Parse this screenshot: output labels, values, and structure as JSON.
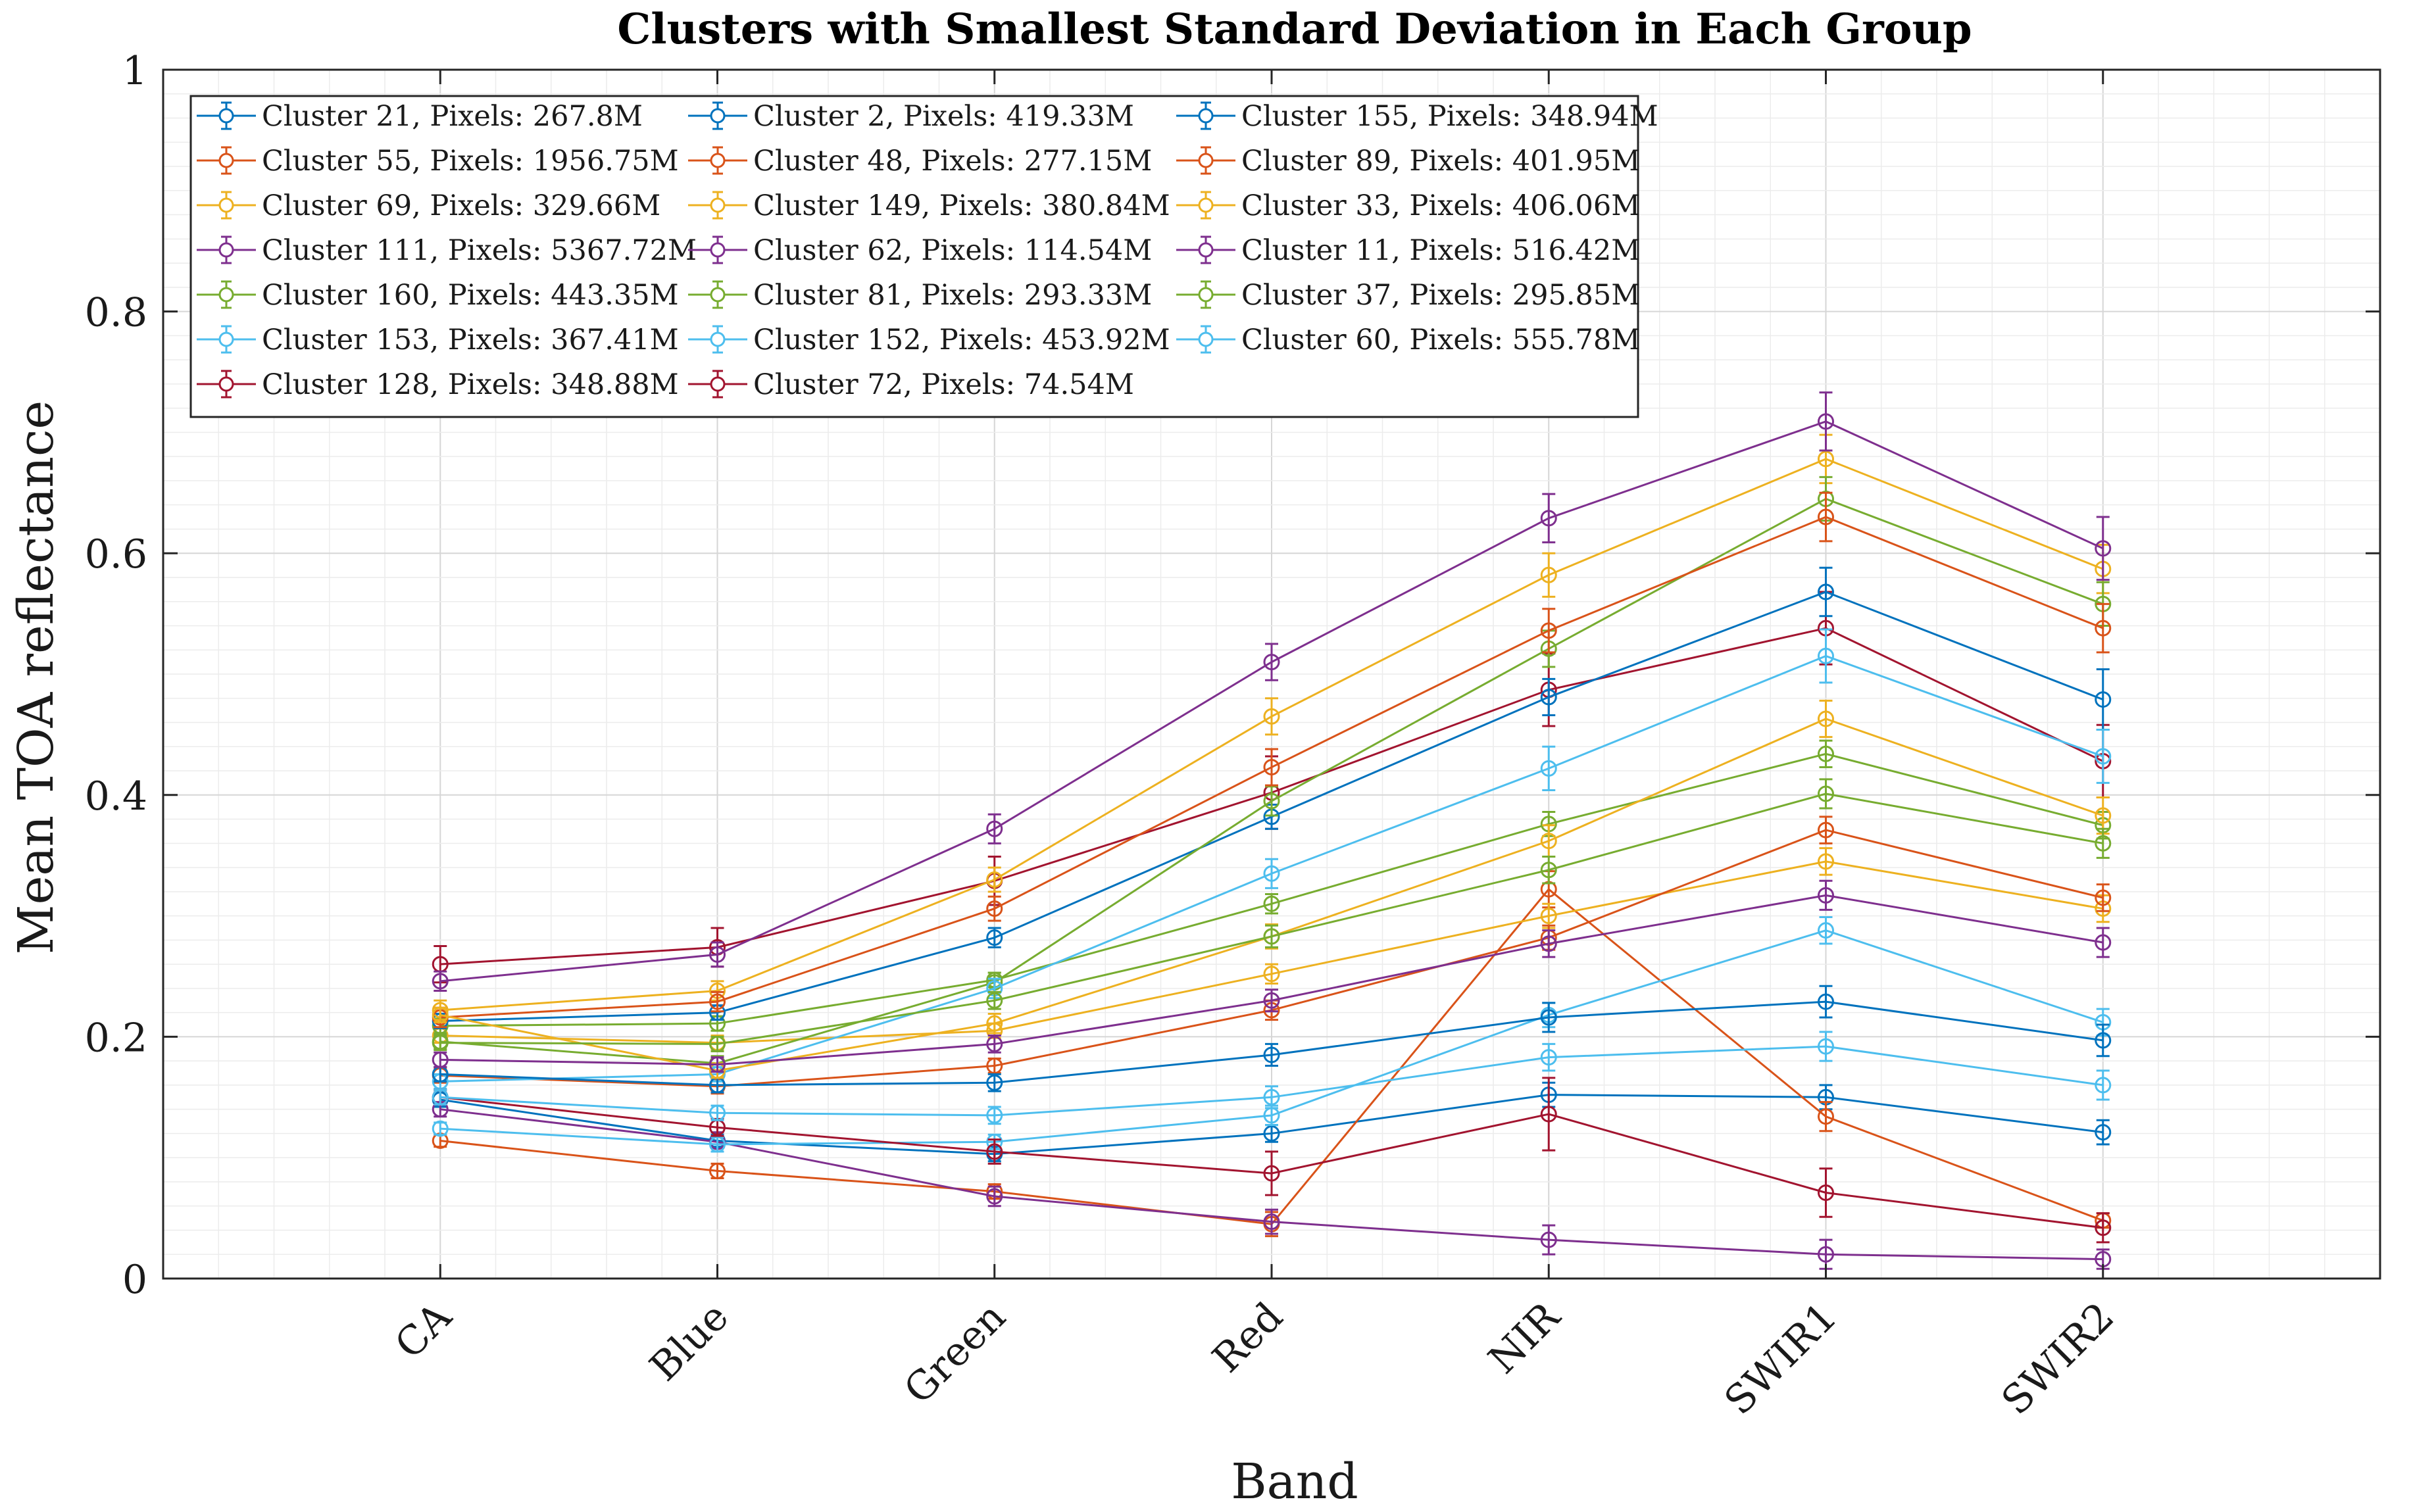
{
  "chart_data": {
    "type": "line",
    "title": "Clusters with Smallest Standard Deviation in Each Group",
    "xlabel": "Band",
    "ylabel": "Mean TOA reflectance",
    "categories": [
      "CA",
      "Blue",
      "Green",
      "Red",
      "NIR",
      "SWIR1",
      "SWIR2"
    ],
    "ylim": [
      0,
      1
    ],
    "xlim": [
      0,
      8
    ],
    "yticks": [
      "0",
      "0.2",
      "0.4",
      "0.6",
      "0.8",
      "1"
    ],
    "ytick_values": [
      0,
      0.2,
      0.4,
      0.6,
      0.8,
      1.0
    ],
    "grid": true,
    "error_bars": true,
    "legend_position": "top-left",
    "legend_columns": 3,
    "series": [
      {
        "name": "Cluster 21, Pixels: 267.8M",
        "color": "#0072BD",
        "values": [
          0.148,
          0.114,
          0.103,
          0.12,
          0.152,
          0.15,
          0.121
        ],
        "errors": [
          0.006,
          0.005,
          0.006,
          0.007,
          0.01,
          0.01,
          0.01
        ]
      },
      {
        "name": "Cluster 55, Pixels: 1956.75M",
        "color": "#D95319",
        "values": [
          0.114,
          0.089,
          0.072,
          0.045,
          0.322,
          0.134,
          0.048
        ],
        "errors": [
          0.005,
          0.006,
          0.006,
          0.01,
          0.015,
          0.012,
          0.006
        ]
      },
      {
        "name": "Cluster 69, Pixels: 329.66M",
        "color": "#EDB120",
        "values": [
          0.201,
          0.195,
          0.205,
          0.252,
          0.3,
          0.345,
          0.306
        ],
        "errors": [
          0.006,
          0.006,
          0.006,
          0.008,
          0.01,
          0.011,
          0.011
        ]
      },
      {
        "name": "Cluster 111, Pixels: 5367.72M",
        "color": "#7E2F8E",
        "values": [
          0.14,
          0.113,
          0.068,
          0.047,
          0.032,
          0.02,
          0.016
        ],
        "errors": [
          0.006,
          0.008,
          0.008,
          0.01,
          0.012,
          0.012,
          0.008
        ]
      },
      {
        "name": "Cluster 160, Pixels: 443.35M",
        "color": "#77AC30",
        "values": [
          0.209,
          0.211,
          0.247,
          0.31,
          0.376,
          0.434,
          0.375
        ],
        "errors": [
          0.006,
          0.006,
          0.006,
          0.008,
          0.01,
          0.011,
          0.011
        ]
      },
      {
        "name": "Cluster 153, Pixels: 367.41M",
        "color": "#4DBEEE",
        "values": [
          0.124,
          0.111,
          0.113,
          0.135,
          0.218,
          0.288,
          0.212
        ],
        "errors": [
          0.005,
          0.006,
          0.006,
          0.008,
          0.01,
          0.011,
          0.011
        ]
      },
      {
        "name": "Cluster 128, Pixels: 348.88M",
        "color": "#A2142F",
        "values": [
          0.26,
          0.274,
          0.329,
          0.402,
          0.487,
          0.538,
          0.428
        ],
        "errors": [
          0.015,
          0.016,
          0.02,
          0.03,
          0.03,
          0.03,
          0.03
        ]
      },
      {
        "name": "Cluster 2, Pixels: 419.33M",
        "color": "#0072BD",
        "values": [
          0.213,
          0.22,
          0.282,
          0.382,
          0.481,
          0.568,
          0.479
        ],
        "errors": [
          0.006,
          0.006,
          0.008,
          0.01,
          0.015,
          0.02,
          0.025
        ]
      },
      {
        "name": "Cluster 48, Pixels: 277.15M",
        "color": "#D95319",
        "values": [
          0.168,
          0.159,
          0.176,
          0.222,
          0.282,
          0.371,
          0.315
        ],
        "errors": [
          0.006,
          0.006,
          0.006,
          0.008,
          0.01,
          0.011,
          0.011
        ]
      },
      {
        "name": "Cluster 149, Pixels: 380.84M",
        "color": "#EDB120",
        "values": [
          0.222,
          0.238,
          0.33,
          0.465,
          0.582,
          0.678,
          0.587
        ],
        "errors": [
          0.008,
          0.008,
          0.01,
          0.015,
          0.018,
          0.02,
          0.02
        ]
      },
      {
        "name": "Cluster 62, Pixels: 114.54M",
        "color": "#7E2F8E",
        "values": [
          0.246,
          0.268,
          0.372,
          0.51,
          0.629,
          0.709,
          0.604
        ],
        "errors": [
          0.008,
          0.01,
          0.012,
          0.015,
          0.02,
          0.024,
          0.026
        ]
      },
      {
        "name": "Cluster 81, Pixels: 293.33M",
        "color": "#77AC30",
        "values": [
          0.196,
          0.178,
          0.245,
          0.395,
          0.521,
          0.645,
          0.558
        ],
        "errors": [
          0.006,
          0.006,
          0.008,
          0.012,
          0.015,
          0.018,
          0.018
        ]
      },
      {
        "name": "Cluster 152, Pixels: 453.92M",
        "color": "#4DBEEE",
        "values": [
          0.163,
          0.169,
          0.24,
          0.335,
          0.422,
          0.515,
          0.432
        ],
        "errors": [
          0.006,
          0.006,
          0.008,
          0.012,
          0.018,
          0.022,
          0.022
        ]
      },
      {
        "name": "Cluster 72, Pixels: 74.54M",
        "color": "#A2142F",
        "values": [
          0.15,
          0.125,
          0.105,
          0.087,
          0.136,
          0.071,
          0.042
        ],
        "errors": [
          0.006,
          0.007,
          0.01,
          0.018,
          0.03,
          0.02,
          0.012
        ]
      },
      {
        "name": "Cluster 155, Pixels: 348.94M",
        "color": "#0072BD",
        "values": [
          0.169,
          0.16,
          0.162,
          0.185,
          0.216,
          0.229,
          0.197
        ],
        "errors": [
          0.006,
          0.006,
          0.007,
          0.009,
          0.012,
          0.013,
          0.013
        ]
      },
      {
        "name": "Cluster 89, Pixels: 401.95M",
        "color": "#D95319",
        "values": [
          0.216,
          0.229,
          0.306,
          0.423,
          0.536,
          0.63,
          0.538
        ],
        "errors": [
          0.008,
          0.008,
          0.01,
          0.015,
          0.018,
          0.02,
          0.02
        ]
      },
      {
        "name": "Cluster 33, Pixels: 406.06M",
        "color": "#EDB120",
        "values": [
          0.218,
          0.172,
          0.211,
          0.283,
          0.362,
          0.463,
          0.383
        ],
        "errors": [
          0.006,
          0.006,
          0.008,
          0.01,
          0.013,
          0.015,
          0.015
        ]
      },
      {
        "name": "Cluster 11, Pixels: 516.42M",
        "color": "#7E2F8E",
        "values": [
          0.181,
          0.177,
          0.194,
          0.23,
          0.277,
          0.317,
          0.278
        ],
        "errors": [
          0.006,
          0.006,
          0.007,
          0.009,
          0.011,
          0.012,
          0.012
        ]
      },
      {
        "name": "Cluster 37, Pixels: 295.85M",
        "color": "#77AC30",
        "values": [
          0.195,
          0.194,
          0.23,
          0.283,
          0.338,
          0.401,
          0.36
        ],
        "errors": [
          0.006,
          0.006,
          0.007,
          0.009,
          0.011,
          0.012,
          0.012
        ]
      },
      {
        "name": "Cluster 60, Pixels: 555.78M",
        "color": "#4DBEEE",
        "values": [
          0.15,
          0.137,
          0.135,
          0.15,
          0.183,
          0.192,
          0.16
        ],
        "errors": [
          0.006,
          0.006,
          0.007,
          0.009,
          0.011,
          0.012,
          0.012
        ]
      }
    ]
  }
}
